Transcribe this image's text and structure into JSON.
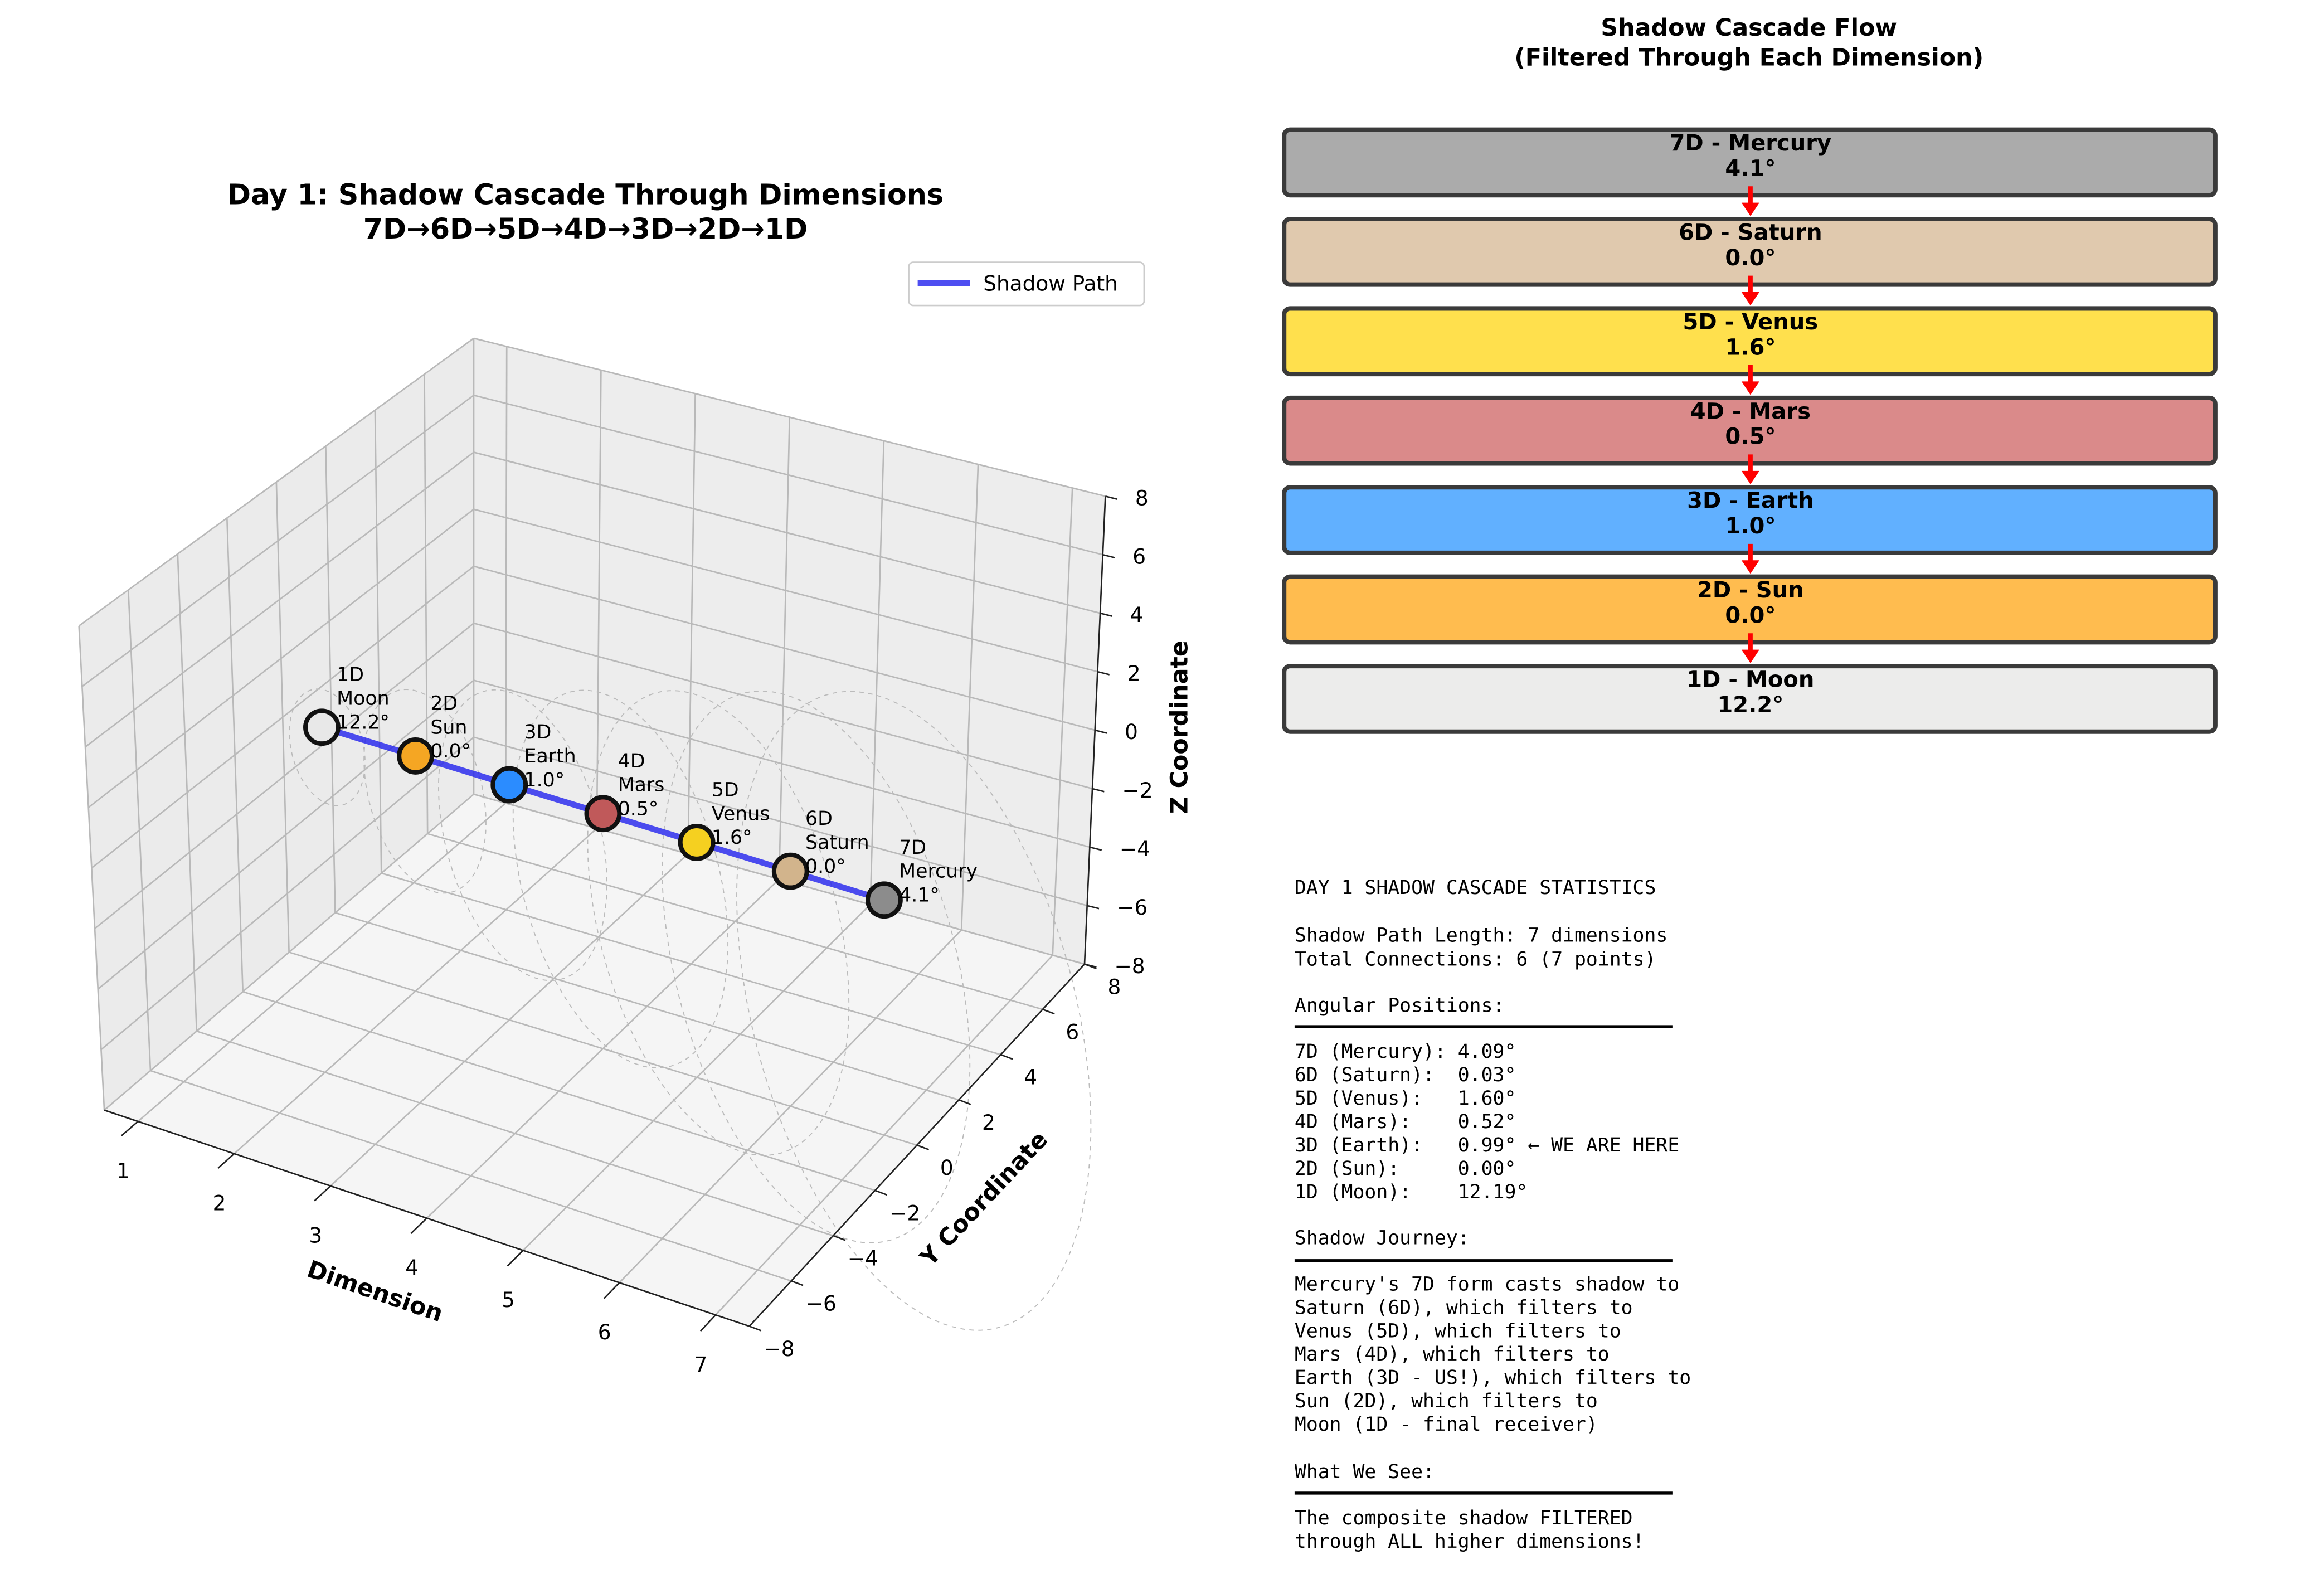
{
  "chart_data": [
    {
      "type": "line3d",
      "title": "Day 1: Shadow Cascade Through Dimensions",
      "subtitle": "7D→6D→5D→4D→3D→2D→1D",
      "xlabel": "Dimension",
      "ylabel": "Y Coordinate",
      "zlabel": "Z Coordinate",
      "xlim": [
        1,
        7
      ],
      "ylim": [
        -8,
        8
      ],
      "zlim": [
        -8,
        8
      ],
      "x_ticks": [
        "1",
        "2",
        "3",
        "4",
        "5",
        "6",
        "7"
      ],
      "y_ticks": [
        "−8",
        "−6",
        "−4",
        "−2",
        "0",
        "2",
        "4",
        "6",
        "8"
      ],
      "z_ticks": [
        "−8",
        "−6",
        "−4",
        "−2",
        "0",
        "2",
        "4",
        "6",
        "8"
      ],
      "legend": {
        "label": "Shadow Path",
        "color": "#0000ee",
        "placement": "top-right"
      },
      "points": [
        {
          "dimension": 1,
          "dim_label": "1D",
          "body": "Moon",
          "angle": "12.2°",
          "color": "#e8e8e8",
          "y": 0,
          "z": 0
        },
        {
          "dimension": 2,
          "dim_label": "2D",
          "body": "Sun",
          "angle": "0.0°",
          "color": "#f5a623",
          "y": 0,
          "z": 0
        },
        {
          "dimension": 3,
          "dim_label": "3D",
          "body": "Earth",
          "angle": "1.0°",
          "color": "#2b8cff",
          "y": 0,
          "z": 0
        },
        {
          "dimension": 4,
          "dim_label": "4D",
          "body": "Mars",
          "angle": "0.5°",
          "color": "#c0595a",
          "y": 0,
          "z": 0
        },
        {
          "dimension": 5,
          "dim_label": "5D",
          "body": "Venus",
          "angle": "1.6°",
          "color": "#f5d020",
          "y": 0,
          "z": 0
        },
        {
          "dimension": 6,
          "dim_label": "6D",
          "body": "Saturn",
          "angle": "0.0°",
          "color": "#d2b48c",
          "y": 0,
          "z": 0
        },
        {
          "dimension": 7,
          "dim_label": "7D",
          "body": "Mercury",
          "angle": "4.1°",
          "color": "#8c8c8c",
          "y": 0,
          "z": 0
        }
      ]
    },
    {
      "type": "flow",
      "title_line1": "Shadow Cascade Flow",
      "title_line2": "(Filtered Through Each Dimension)",
      "boxes": [
        {
          "label": "7D - Mercury",
          "angle": "4.1°",
          "color": "#ababab"
        },
        {
          "label": "6D - Saturn",
          "angle": "0.0°",
          "color": "#e0c9ae"
        },
        {
          "label": "5D - Venus",
          "angle": "1.6°",
          "color": "#ffe04d"
        },
        {
          "label": "4D - Mars",
          "angle": "0.5°",
          "color": "#da8a8a"
        },
        {
          "label": "3D - Earth",
          "angle": "1.0°",
          "color": "#61b0ff"
        },
        {
          "label": "2D - Sun",
          "angle": "0.0°",
          "color": "#ffbc4f"
        },
        {
          "label": "1D - Moon",
          "angle": "12.2°",
          "color": "#ececeb"
        }
      ],
      "arrow_color": "#ff0000"
    }
  ],
  "stats": {
    "heading": "DAY 1 SHADOW CASCADE STATISTICS",
    "path_length": "Shadow Path Length: 7 dimensions",
    "connections": "Total Connections: 6 (7 points)",
    "angular_heading": "Angular Positions:",
    "angular_lines": [
      "7D (Mercury): 4.09°",
      "6D (Saturn):  0.03°",
      "5D (Venus):   1.60°",
      "4D (Mars):    0.52°",
      "3D (Earth):   0.99° ← WE ARE HERE",
      "2D (Sun):     0.00°",
      "1D (Moon):    12.19°"
    ],
    "journey_heading": "Shadow Journey:",
    "journey_lines": [
      "Mercury's 7D form casts shadow to",
      "Saturn (6D), which filters to",
      "Venus (5D), which filters to",
      "Mars (4D), which filters to",
      "Earth (3D - US!), which filters to",
      "Sun (2D), which filters to",
      "Moon (1D - final receiver)"
    ],
    "see_heading": "What We See:",
    "see_lines": [
      "The composite shadow FILTERED",
      "through ALL higher dimensions!"
    ]
  }
}
